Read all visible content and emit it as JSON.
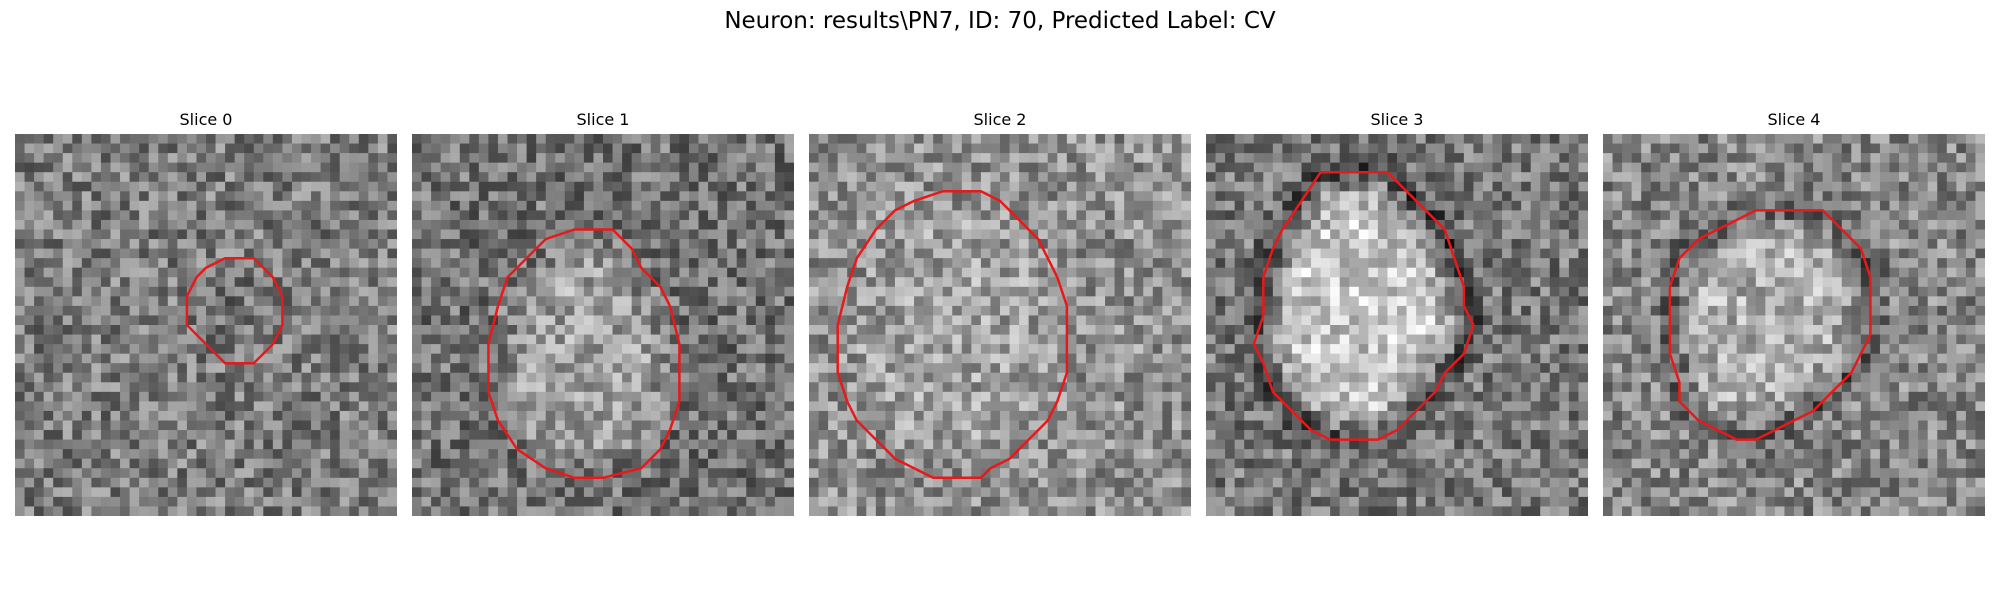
{
  "figure": {
    "title": "Neuron: results\\PN7, ID: 70, Predicted Label: CV"
  },
  "panels": [
    {
      "title": "Slice 0",
      "grayscale_image": "noisy-grayscale-patch",
      "contour_color": "#e8191a",
      "contour": [
        [
          22,
          13
        ],
        [
          25,
          13
        ],
        [
          27,
          15
        ],
        [
          28,
          17
        ],
        [
          28,
          20
        ],
        [
          27,
          22
        ],
        [
          26,
          23
        ],
        [
          25,
          24
        ],
        [
          22,
          24
        ],
        [
          20,
          22
        ],
        [
          19,
          21
        ],
        [
          18,
          20
        ],
        [
          18,
          17
        ],
        [
          19,
          15
        ],
        [
          20,
          14
        ]
      ]
    },
    {
      "title": "Slice 1",
      "grayscale_image": "noisy-grayscale-patch",
      "contour_color": "#e8191a",
      "contour": [
        [
          17,
          10
        ],
        [
          21,
          10
        ],
        [
          23,
          12
        ],
        [
          24,
          14
        ],
        [
          26,
          16
        ],
        [
          27,
          18
        ],
        [
          28,
          22
        ],
        [
          28,
          28
        ],
        [
          27,
          31
        ],
        [
          26,
          33
        ],
        [
          24,
          35
        ],
        [
          20,
          36
        ],
        [
          17,
          36
        ],
        [
          14,
          35
        ],
        [
          11,
          33
        ],
        [
          9,
          30
        ],
        [
          8,
          27
        ],
        [
          8,
          22
        ],
        [
          9,
          18
        ],
        [
          10,
          15
        ],
        [
          12,
          13
        ],
        [
          14,
          11
        ]
      ]
    },
    {
      "title": "Slice 2",
      "grayscale_image": "noisy-grayscale-patch",
      "contour_color": "#e8191a",
      "contour": [
        [
          14,
          6
        ],
        [
          18,
          6
        ],
        [
          20,
          7
        ],
        [
          22,
          9
        ],
        [
          24,
          11
        ],
        [
          25,
          13
        ],
        [
          26,
          15
        ],
        [
          27,
          18
        ],
        [
          27,
          25
        ],
        [
          26,
          28
        ],
        [
          25,
          30
        ],
        [
          23,
          32
        ],
        [
          21,
          34
        ],
        [
          19,
          35
        ],
        [
          18,
          36
        ],
        [
          13,
          36
        ],
        [
          11,
          35
        ],
        [
          9,
          34
        ],
        [
          7,
          32
        ],
        [
          5,
          30
        ],
        [
          4,
          28
        ],
        [
          3,
          25
        ],
        [
          3,
          20
        ],
        [
          4,
          16
        ],
        [
          5,
          13
        ],
        [
          7,
          10
        ],
        [
          9,
          8
        ],
        [
          11,
          7
        ]
      ]
    },
    {
      "title": "Slice 3",
      "grayscale_image": "noisy-grayscale-patch",
      "contour_color": "#e8191a",
      "contour": [
        [
          12,
          4
        ],
        [
          19,
          4
        ],
        [
          21,
          6
        ],
        [
          23,
          8
        ],
        [
          25,
          10
        ],
        [
          26,
          13
        ],
        [
          27,
          16
        ],
        [
          27,
          18
        ],
        [
          28,
          20
        ],
        [
          27,
          23
        ],
        [
          25,
          25
        ],
        [
          24,
          27
        ],
        [
          22,
          29
        ],
        [
          20,
          31
        ],
        [
          18,
          32
        ],
        [
          13,
          32
        ],
        [
          11,
          31
        ],
        [
          9,
          29
        ],
        [
          7,
          27
        ],
        [
          6,
          24
        ],
        [
          5,
          22
        ],
        [
          6,
          19
        ],
        [
          6,
          15
        ],
        [
          7,
          12
        ],
        [
          8,
          10
        ],
        [
          10,
          7
        ]
      ]
    },
    {
      "title": "Slice 4",
      "grayscale_image": "noisy-grayscale-patch",
      "contour_color": "#e8191a",
      "contour": [
        [
          16,
          8
        ],
        [
          23,
          8
        ],
        [
          25,
          10
        ],
        [
          27,
          12
        ],
        [
          28,
          15
        ],
        [
          28,
          21
        ],
        [
          27,
          23
        ],
        [
          26,
          25
        ],
        [
          24,
          27
        ],
        [
          22,
          29
        ],
        [
          20,
          30
        ],
        [
          18,
          31
        ],
        [
          16,
          32
        ],
        [
          14,
          32
        ],
        [
          12,
          31
        ],
        [
          10,
          30
        ],
        [
          8,
          28
        ],
        [
          8,
          26
        ],
        [
          7,
          23
        ],
        [
          7,
          16
        ],
        [
          8,
          13
        ],
        [
          10,
          11
        ],
        [
          12,
          10
        ],
        [
          14,
          9
        ]
      ]
    }
  ]
}
